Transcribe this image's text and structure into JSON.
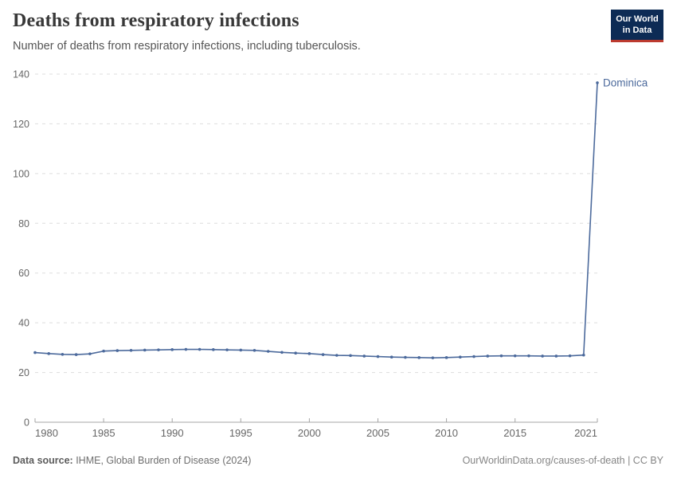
{
  "header": {
    "title": "Deaths from respiratory infections",
    "subtitle": "Number of deaths from respiratory infections, including tuberculosis."
  },
  "logo": {
    "line1": "Our World",
    "line2": "in Data",
    "bg_color": "#0d2b55",
    "accent_color": "#bc3a2f"
  },
  "footer": {
    "source_label": "Data source:",
    "source_text": " IHME, Global Burden of Disease (2024)",
    "link_text": "OurWorldinData.org/causes-of-death | CC BY"
  },
  "colors": {
    "series": "#4c6a9c",
    "grid": "#dddddd",
    "axis": "#a5a5a5",
    "tick_text": "#666666"
  },
  "chart_data": {
    "type": "line",
    "title": "Deaths from respiratory infections",
    "subtitle": "Number of deaths from respiratory infections, including tuberculosis.",
    "xlabel": "",
    "ylabel": "",
    "xlim": [
      1980,
      2021
    ],
    "ylim": [
      0,
      140
    ],
    "x_ticks": [
      1980,
      1985,
      1990,
      1995,
      2000,
      2005,
      2010,
      2015,
      2021
    ],
    "y_ticks": [
      0,
      20,
      40,
      60,
      80,
      100,
      120,
      140
    ],
    "grid": "horizontal-dashed",
    "legend_position": "end-of-line-label",
    "series": [
      {
        "name": "Dominica",
        "color": "#4c6a9c",
        "x": [
          1980,
          1981,
          1982,
          1983,
          1984,
          1985,
          1986,
          1987,
          1988,
          1989,
          1990,
          1991,
          1992,
          1993,
          1994,
          1995,
          1996,
          1997,
          1998,
          1999,
          2000,
          2001,
          2002,
          2003,
          2004,
          2005,
          2006,
          2007,
          2008,
          2009,
          2010,
          2011,
          2012,
          2013,
          2014,
          2015,
          2016,
          2017,
          2018,
          2019,
          2020,
          2021
        ],
        "values": [
          28,
          27.6,
          27.3,
          27.2,
          27.5,
          28.6,
          28.8,
          28.9,
          29,
          29.1,
          29.2,
          29.3,
          29.3,
          29.2,
          29.1,
          29,
          28.9,
          28.5,
          28.1,
          27.8,
          27.6,
          27.2,
          26.9,
          26.8,
          26.6,
          26.4,
          26.2,
          26.1,
          26,
          25.9,
          26,
          26.2,
          26.4,
          26.6,
          26.7,
          26.7,
          26.7,
          26.6,
          26.6,
          26.7,
          27,
          136.5
        ]
      }
    ]
  }
}
